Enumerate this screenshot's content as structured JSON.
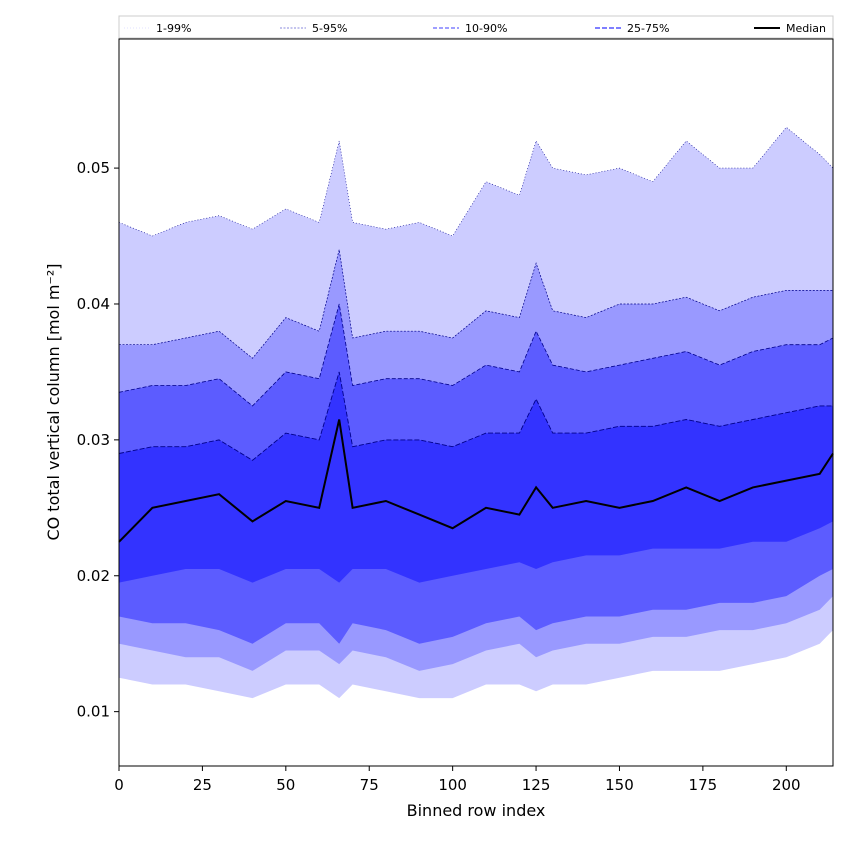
{
  "chart_data": {
    "type": "area",
    "xlabel": "Binned row index",
    "ylabel": "CO total vertical column [mol m⁻²]",
    "xlim": [
      0,
      214
    ],
    "ylim": [
      0.006,
      0.0595
    ],
    "xticks": [
      0,
      25,
      50,
      75,
      100,
      125,
      150,
      175,
      200
    ],
    "yticks": [
      0.01,
      0.02,
      0.03,
      0.04,
      0.05
    ],
    "grid": false,
    "legend_position": "top",
    "colors": {
      "band_1_99": "#ccccff",
      "band_5_95": "#9999ff",
      "band_10_90": "#5c5cff",
      "band_25_75": "#3333ff",
      "median": "#000000",
      "edge": "#00008b"
    },
    "legend": [
      "1-99%",
      "5-95%",
      "10-90%",
      "25-75%",
      "Median"
    ],
    "x": [
      0,
      10,
      20,
      30,
      40,
      50,
      60,
      66,
      70,
      80,
      90,
      100,
      110,
      120,
      125,
      130,
      140,
      150,
      160,
      170,
      180,
      190,
      200,
      210,
      214
    ],
    "series": [
      {
        "name": "Median",
        "values": [
          0.0225,
          0.025,
          0.0255,
          0.026,
          0.024,
          0.0255,
          0.025,
          0.0315,
          0.025,
          0.0255,
          0.0245,
          0.0235,
          0.025,
          0.0245,
          0.0265,
          0.025,
          0.0255,
          0.025,
          0.0255,
          0.0265,
          0.0255,
          0.0265,
          0.027,
          0.0275,
          0.029
        ]
      },
      {
        "name": "1-99%",
        "lower": [
          0.0125,
          0.012,
          0.012,
          0.0115,
          0.011,
          0.012,
          0.012,
          0.011,
          0.012,
          0.0115,
          0.011,
          0.011,
          0.012,
          0.012,
          0.0115,
          0.012,
          0.012,
          0.0125,
          0.013,
          0.013,
          0.013,
          0.0135,
          0.014,
          0.015,
          0.016
        ],
        "upper": [
          0.046,
          0.045,
          0.046,
          0.0465,
          0.0455,
          0.047,
          0.046,
          0.052,
          0.046,
          0.0455,
          0.046,
          0.045,
          0.049,
          0.048,
          0.052,
          0.05,
          0.0495,
          0.05,
          0.049,
          0.052,
          0.05,
          0.05,
          0.053,
          0.051,
          0.05
        ]
      },
      {
        "name": "5-95%",
        "lower": [
          0.015,
          0.0145,
          0.014,
          0.014,
          0.013,
          0.0145,
          0.0145,
          0.0135,
          0.0145,
          0.014,
          0.013,
          0.0135,
          0.0145,
          0.015,
          0.014,
          0.0145,
          0.015,
          0.015,
          0.0155,
          0.0155,
          0.016,
          0.016,
          0.0165,
          0.0175,
          0.0185
        ],
        "upper": [
          0.037,
          0.037,
          0.0375,
          0.038,
          0.036,
          0.039,
          0.038,
          0.044,
          0.0375,
          0.038,
          0.038,
          0.0375,
          0.0395,
          0.039,
          0.043,
          0.0395,
          0.039,
          0.04,
          0.04,
          0.0405,
          0.0395,
          0.0405,
          0.041,
          0.041,
          0.041
        ]
      },
      {
        "name": "10-90%",
        "lower": [
          0.017,
          0.0165,
          0.0165,
          0.016,
          0.015,
          0.0165,
          0.0165,
          0.015,
          0.0165,
          0.016,
          0.015,
          0.0155,
          0.0165,
          0.017,
          0.016,
          0.0165,
          0.017,
          0.017,
          0.0175,
          0.0175,
          0.018,
          0.018,
          0.0185,
          0.02,
          0.0205
        ],
        "upper": [
          0.0335,
          0.034,
          0.034,
          0.0345,
          0.0325,
          0.035,
          0.0345,
          0.04,
          0.034,
          0.0345,
          0.0345,
          0.034,
          0.0355,
          0.035,
          0.038,
          0.0355,
          0.035,
          0.0355,
          0.036,
          0.0365,
          0.0355,
          0.0365,
          0.037,
          0.037,
          0.0375
        ]
      },
      {
        "name": "25-75%",
        "lower": [
          0.0195,
          0.02,
          0.0205,
          0.0205,
          0.0195,
          0.0205,
          0.0205,
          0.0195,
          0.0205,
          0.0205,
          0.0195,
          0.02,
          0.0205,
          0.021,
          0.0205,
          0.021,
          0.0215,
          0.0215,
          0.022,
          0.022,
          0.022,
          0.0225,
          0.0225,
          0.0235,
          0.024
        ],
        "upper": [
          0.029,
          0.0295,
          0.0295,
          0.03,
          0.0285,
          0.0305,
          0.03,
          0.035,
          0.0295,
          0.03,
          0.03,
          0.0295,
          0.0305,
          0.0305,
          0.033,
          0.0305,
          0.0305,
          0.031,
          0.031,
          0.0315,
          0.031,
          0.0315,
          0.032,
          0.0325,
          0.0325
        ]
      }
    ]
  }
}
